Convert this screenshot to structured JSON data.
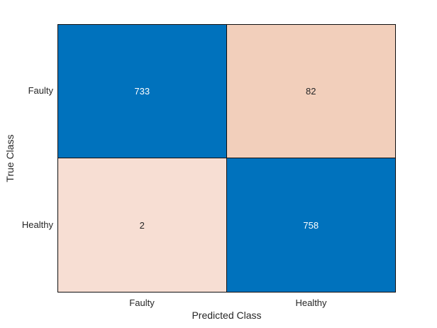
{
  "figure": {
    "background": "#FFFFFF"
  },
  "chart_data": {
    "type": "heatmap",
    "subtype": "confusion-matrix",
    "title": "",
    "xlabel": "Predicted Class",
    "ylabel": "True Class",
    "x_categories": [
      "Faulty",
      "Healthy"
    ],
    "y_categories": [
      "Faulty",
      "Healthy"
    ],
    "values": [
      [
        733,
        82
      ],
      [
        2,
        758
      ]
    ],
    "cell_colors": [
      [
        "#0072BD",
        "#F2CFBB"
      ],
      [
        "#F7DED3",
        "#0072BD"
      ]
    ],
    "cell_text_colors": [
      [
        "#FFFFFF",
        "#262626"
      ],
      [
        "#262626",
        "#FFFFFF"
      ]
    ],
    "grid": "on",
    "legend": "none",
    "axis_text_color": "#262626",
    "cell_border_color": "#0F0F0F",
    "diagonal_color": "#0072BD",
    "off_diagonal_high_color": "#F2CFBB",
    "off_diagonal_low_color": "#F7DED3"
  }
}
